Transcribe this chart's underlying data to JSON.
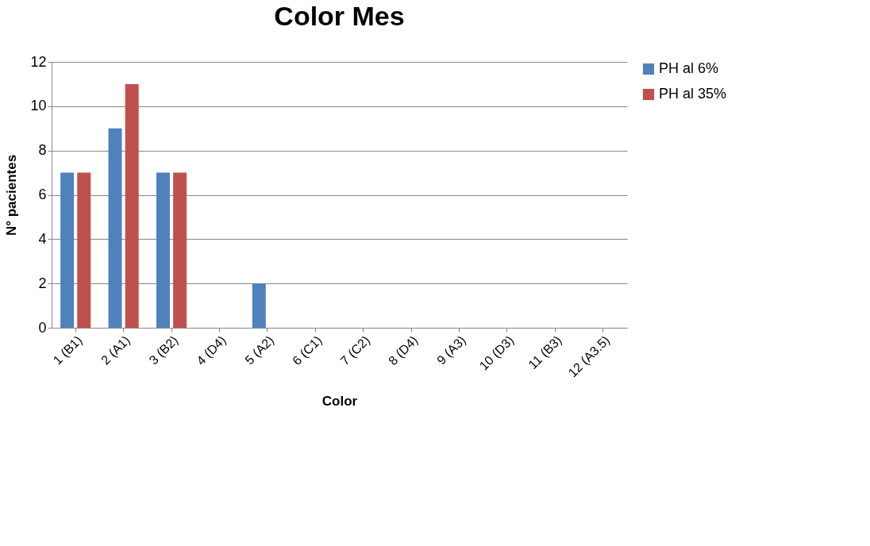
{
  "chart_data": {
    "type": "bar",
    "title": "Color Mes",
    "xlabel": "Color",
    "ylabel": "N° pacientes",
    "categories": [
      "1 (B1)",
      "2 (A1)",
      "3 (B2)",
      "4 (D4)",
      "5 (A2)",
      "6 (C1)",
      "7 (C2)",
      "8 (D4)",
      "9 (A3)",
      "10 (D3)",
      "11 (B3)",
      "12 (A3.5)"
    ],
    "series": [
      {
        "name": "PH al 6%",
        "color": "#4f81bd",
        "values": [
          7,
          9,
          7,
          0,
          2,
          0,
          0,
          0,
          0,
          0,
          0,
          0
        ]
      },
      {
        "name": "PH al 35%",
        "color": "#c0504d",
        "values": [
          7,
          11,
          7,
          0,
          0,
          0,
          0,
          0,
          0,
          0,
          0,
          0
        ]
      }
    ],
    "ylim": [
      0,
      12
    ],
    "yticks": [
      0,
      2,
      4,
      6,
      8,
      10,
      12
    ],
    "grid": "y",
    "legend": "right"
  }
}
